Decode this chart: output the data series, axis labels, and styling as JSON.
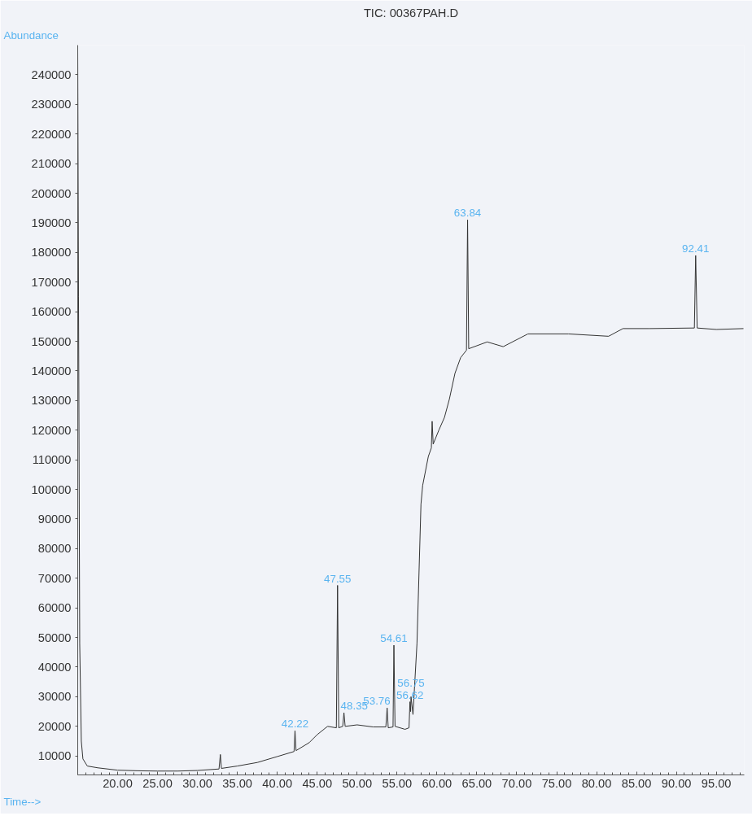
{
  "chart_data": {
    "type": "line",
    "title": "TIC: 00367PAH.D",
    "xlabel": "Time-->",
    "ylabel": "Abundance",
    "xlim": [
      15,
      98.5
    ],
    "ylim": [
      3600,
      250000
    ],
    "xticks": [
      {
        "value": 20,
        "label": "20.00"
      },
      {
        "value": 25,
        "label": "25.00"
      },
      {
        "value": 30,
        "label": "30.00"
      },
      {
        "value": 35,
        "label": "35.00"
      },
      {
        "value": 40,
        "label": "40.00"
      },
      {
        "value": 45,
        "label": "45.00"
      },
      {
        "value": 50,
        "label": "50.00"
      },
      {
        "value": 55,
        "label": "55.00"
      },
      {
        "value": 60,
        "label": "60.00"
      },
      {
        "value": 65,
        "label": "65.00"
      },
      {
        "value": 70,
        "label": "70.00"
      },
      {
        "value": 75,
        "label": "75.00"
      },
      {
        "value": 80,
        "label": "80.00"
      },
      {
        "value": 85,
        "label": "85.00"
      },
      {
        "value": 90,
        "label": "90.00"
      },
      {
        "value": 95,
        "label": "95.00"
      }
    ],
    "yticks": [
      10000,
      20000,
      30000,
      40000,
      50000,
      60000,
      70000,
      80000,
      90000,
      100000,
      110000,
      120000,
      130000,
      140000,
      150000,
      160000,
      170000,
      180000,
      190000,
      200000,
      210000,
      220000,
      230000,
      240000
    ],
    "grid": false,
    "marker": "none",
    "line_style": "solid",
    "series": [
      {
        "color": "#333333",
        "x": [
          15.0,
          15.1,
          15.25,
          15.45,
          15.65,
          16.2,
          17.5,
          20,
          22.5,
          25,
          27.5,
          30,
          32.7,
          32.87,
          33.0,
          35,
          37.5,
          40,
          42.1,
          42.22,
          42.35,
          44,
          45,
          46.3,
          47.4,
          47.55,
          47.7,
          48.2,
          48.35,
          48.5,
          50,
          52,
          53.6,
          53.76,
          53.9,
          54.5,
          54.61,
          54.75,
          56.0,
          56.5,
          56.62,
          56.7,
          56.75,
          57.0,
          57.5,
          58.0,
          58.21,
          58.92,
          59.3,
          59.4,
          59.53,
          60.24,
          60.94,
          61.55,
          62.26,
          62.97,
          63.7,
          63.84,
          63.98,
          66.3,
          68.3,
          71.4,
          76.5,
          81.5,
          83.3,
          86.6,
          92.25,
          92.41,
          92.6,
          95,
          98.4
        ],
        "values": [
          248000,
          165000,
          48000,
          15000,
          9000,
          6600,
          6000,
          5200,
          5000,
          4900,
          4900,
          5100,
          5600,
          10500,
          5800,
          6600,
          7800,
          9800,
          11500,
          18500,
          11800,
          14500,
          17200,
          20000,
          19500,
          67600,
          19500,
          20000,
          24600,
          20000,
          20500,
          19800,
          19800,
          26200,
          19500,
          19800,
          47400,
          20000,
          19000,
          19500,
          28300,
          25000,
          30000,
          24000,
          48000,
          95000,
          101300,
          111100,
          114000,
          123000,
          115300,
          120000,
          124300,
          130400,
          139200,
          144500,
          147000,
          191000,
          147500,
          149800,
          148200,
          152500,
          152500,
          151700,
          154300,
          154300,
          154500,
          179000,
          154500,
          154000,
          154300
        ]
      }
    ],
    "annotations": [
      {
        "text": "42.22",
        "x": 42.22,
        "y": 18500
      },
      {
        "text": "47.55",
        "x": 47.55,
        "y": 67600
      },
      {
        "text": "48.35",
        "x": 48.35,
        "y": 24600
      },
      {
        "text": "53.76",
        "x": 53.76,
        "y": 26200
      },
      {
        "text": "54.61",
        "x": 54.61,
        "y": 47400
      },
      {
        "text": "56.62",
        "x": 56.62,
        "y": 28300
      },
      {
        "text": "56.75",
        "x": 56.75,
        "y": 30000
      },
      {
        "text": "63.84",
        "x": 63.84,
        "y": 191000
      },
      {
        "text": "92.41",
        "x": 92.41,
        "y": 179000
      }
    ]
  }
}
